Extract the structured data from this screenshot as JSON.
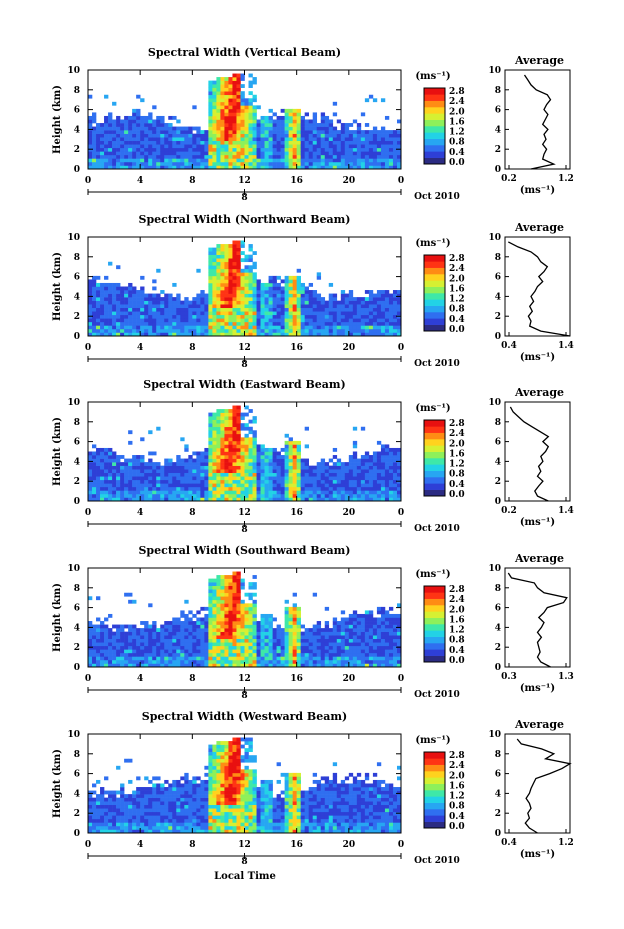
{
  "figure": {
    "xlabel": "Local Time",
    "date_label": "Oct 2010",
    "day_marker": "8",
    "ylabel": "Height (km)",
    "unit_label": "(ms⁻¹)",
    "avg_xlabel": "(ms⁻¹)",
    "x_ticks": [
      "0",
      "4",
      "8",
      "12",
      "16",
      "20",
      "0"
    ],
    "y_ticks": [
      "0",
      "2",
      "4",
      "6",
      "8",
      "10"
    ],
    "colorbar_ticks": [
      "0.0",
      "0.4",
      "0.8",
      "1.2",
      "1.6",
      "2.0",
      "2.4",
      "2.8"
    ],
    "colorbar_colors": [
      "#2b2b82",
      "#2e3fd6",
      "#2f6ff0",
      "#27a6f2",
      "#22d2e6",
      "#3ee8a8",
      "#8ef05a",
      "#d6f032",
      "#ffd21e",
      "#ff8c14",
      "#ff3414",
      "#e81010"
    ]
  },
  "chart_data": [
    {
      "type": "heatmap",
      "title": "Spectral Width (Vertical Beam)",
      "xlim": [
        0,
        24
      ],
      "ylim": [
        0,
        10
      ],
      "clim": [
        0,
        3.0
      ],
      "avg": {
        "title": "Average",
        "xlim": [
          0.2,
          1.2
        ],
        "xticks": [
          "0.2",
          "1.2"
        ],
        "heights": [
          0,
          0.5,
          1,
          1.5,
          2,
          2.5,
          3,
          3.5,
          4,
          4.5,
          5,
          5.5,
          6,
          6.5,
          7,
          7.5,
          8,
          8.5,
          9,
          9.5
        ],
        "values": [
          0.6,
          0.95,
          0.78,
          0.8,
          0.84,
          0.78,
          0.83,
          0.8,
          0.86,
          0.78,
          0.82,
          0.86,
          0.8,
          0.84,
          0.9,
          0.85,
          0.68,
          0.6,
          0.55,
          0.5
        ]
      }
    },
    {
      "type": "heatmap",
      "title": "Spectral Width (Northward Beam)",
      "xlim": [
        0,
        24
      ],
      "ylim": [
        0,
        10
      ],
      "clim": [
        0,
        3.0
      ],
      "avg": {
        "title": "Average",
        "xlim": [
          0.4,
          1.4
        ],
        "xticks": [
          "0.4",
          "1.4"
        ],
        "heights": [
          0,
          0.5,
          1,
          1.5,
          2,
          2.5,
          3,
          3.5,
          4,
          4.5,
          5,
          5.5,
          6,
          6.5,
          7,
          7.5,
          8,
          8.5,
          9,
          9.5
        ],
        "values": [
          1.4,
          0.95,
          0.78,
          0.8,
          0.76,
          0.82,
          0.78,
          0.84,
          0.8,
          0.86,
          0.9,
          0.98,
          0.92,
          1.0,
          1.05,
          0.95,
          0.9,
          0.8,
          0.6,
          0.45
        ]
      }
    },
    {
      "type": "heatmap",
      "title": "Spectral Width (Eastward Beam)",
      "xlim": [
        0,
        24
      ],
      "ylim": [
        0,
        10
      ],
      "clim": [
        0,
        3.0
      ],
      "avg": {
        "title": "Average",
        "xlim": [
          0.2,
          1.4
        ],
        "xticks": [
          "0.2",
          "1.4"
        ],
        "heights": [
          0,
          0.5,
          1,
          1.5,
          2,
          2.5,
          3,
          3.5,
          4,
          4.5,
          5,
          5.5,
          6,
          6.5,
          7,
          7.5,
          8,
          8.5,
          9,
          9.5
        ],
        "values": [
          1.0,
          0.8,
          0.75,
          0.82,
          0.9,
          0.8,
          0.86,
          0.82,
          0.9,
          0.86,
          0.95,
          1.0,
          0.9,
          1.0,
          0.85,
          0.7,
          0.55,
          0.45,
          0.35,
          0.3
        ]
      }
    },
    {
      "type": "heatmap",
      "title": "Spectral Width (Southward Beam)",
      "xlim": [
        0,
        24
      ],
      "ylim": [
        0,
        10
      ],
      "clim": [
        0,
        3.0
      ],
      "avg": {
        "title": "Average",
        "xlim": [
          0.3,
          1.3
        ],
        "xticks": [
          "0.3",
          "1.3"
        ],
        "heights": [
          0,
          0.5,
          1,
          1.5,
          2,
          2.5,
          3,
          3.5,
          4,
          4.5,
          5,
          5.5,
          6,
          6.5,
          7,
          7.5,
          8,
          8.5,
          9,
          9.5
        ],
        "values": [
          1.0,
          0.85,
          0.8,
          0.84,
          0.82,
          0.8,
          0.86,
          0.8,
          0.86,
          0.9,
          0.82,
          0.9,
          0.95,
          1.2,
          1.25,
          0.9,
          0.8,
          0.75,
          0.4,
          0.35
        ]
      }
    },
    {
      "type": "heatmap",
      "title": "Spectral Width (Westward Beam)",
      "xlim": [
        0,
        24
      ],
      "ylim": [
        0,
        10
      ],
      "clim": [
        0,
        3.0
      ],
      "avg": {
        "title": "Average",
        "xlim": [
          0.4,
          1.2
        ],
        "xticks": [
          "0.4",
          "1.2"
        ],
        "heights": [
          0,
          0.5,
          1,
          1.5,
          2,
          2.5,
          3,
          3.5,
          4,
          4.5,
          5,
          5.5,
          6,
          6.5,
          7,
          7.5,
          8,
          8.5,
          9,
          9.5
        ],
        "values": [
          0.8,
          0.7,
          0.65,
          0.7,
          0.68,
          0.72,
          0.7,
          0.66,
          0.7,
          0.72,
          0.75,
          0.78,
          0.95,
          1.1,
          1.2,
          0.9,
          1.0,
          0.85,
          0.6,
          0.55
        ]
      }
    }
  ]
}
